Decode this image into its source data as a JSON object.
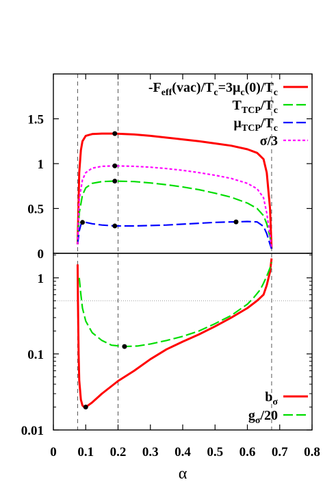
{
  "chart_data": [
    {
      "type": "line",
      "panel": "top",
      "xlim": [
        0,
        0.8
      ],
      "ylim": [
        0,
        2.0
      ],
      "yscale": "linear",
      "y_ticks": [
        "0",
        "0.5",
        "1",
        "1.5"
      ],
      "grid": false,
      "legend_placement": "top-right",
      "reference_lines_x": [
        0.075,
        0.2,
        0.675
      ],
      "series": [
        {
          "name": "-F_eff(vac)/T_c=3μ_c(0)/T_c",
          "legend": {
            "main": "-F",
            "s1": "eff",
            "m2": "(vac)/T",
            "s2": "c",
            "m3": "=3μ",
            "s3": "c",
            "m4": "(0)/T",
            "s4": "c"
          },
          "color": "#ff0000",
          "style": "solid",
          "x": [
            0.075,
            0.08,
            0.085,
            0.09,
            0.1,
            0.12,
            0.15,
            0.19,
            0.25,
            0.3,
            0.35,
            0.4,
            0.45,
            0.5,
            0.55,
            0.6,
            0.63,
            0.65,
            0.66,
            0.67,
            0.675
          ],
          "y": [
            0.1,
            0.9,
            1.15,
            1.25,
            1.31,
            1.33,
            1.335,
            1.335,
            1.325,
            1.31,
            1.29,
            1.27,
            1.25,
            1.225,
            1.2,
            1.16,
            1.12,
            1.05,
            0.9,
            0.5,
            0.05
          ]
        },
        {
          "name": "T_TCP/T_c",
          "legend": {
            "main": "T",
            "s1": "TCP",
            "m2": "/T",
            "s2": "c"
          },
          "color": "#00dd00",
          "style": "dashed",
          "x": [
            0.075,
            0.08,
            0.09,
            0.1,
            0.12,
            0.15,
            0.19,
            0.25,
            0.3,
            0.35,
            0.4,
            0.45,
            0.5,
            0.55,
            0.6,
            0.63,
            0.65,
            0.66,
            0.67,
            0.675
          ],
          "y": [
            0.1,
            0.45,
            0.65,
            0.73,
            0.78,
            0.8,
            0.805,
            0.8,
            0.785,
            0.765,
            0.74,
            0.71,
            0.67,
            0.625,
            0.56,
            0.5,
            0.42,
            0.33,
            0.18,
            0.05
          ]
        },
        {
          "name": "μ_TCP/T_c",
          "legend": {
            "main": "μ",
            "s1": "TCP",
            "m2": "/T",
            "s2": "c"
          },
          "color": "#0000ff",
          "style": "dashed",
          "x": [
            0.075,
            0.08,
            0.085,
            0.09,
            0.1,
            0.12,
            0.15,
            0.19,
            0.25,
            0.3,
            0.35,
            0.4,
            0.45,
            0.5,
            0.55,
            0.565,
            0.6,
            0.63,
            0.65,
            0.66,
            0.67,
            0.675
          ],
          "y": [
            0.1,
            0.25,
            0.32,
            0.345,
            0.345,
            0.33,
            0.315,
            0.305,
            0.305,
            0.31,
            0.315,
            0.325,
            0.335,
            0.345,
            0.35,
            0.35,
            0.355,
            0.35,
            0.3,
            0.22,
            0.1,
            0.05
          ]
        },
        {
          "name": "σ/3",
          "legend": {
            "main": "σ/3"
          },
          "color": "#ff00ff",
          "style": "dotted",
          "x": [
            0.075,
            0.08,
            0.09,
            0.1,
            0.12,
            0.15,
            0.19,
            0.25,
            0.3,
            0.35,
            0.4,
            0.45,
            0.5,
            0.55,
            0.6,
            0.63,
            0.65,
            0.66,
            0.67,
            0.675
          ],
          "y": [
            0.1,
            0.6,
            0.82,
            0.9,
            0.95,
            0.97,
            0.975,
            0.97,
            0.96,
            0.945,
            0.925,
            0.9,
            0.87,
            0.835,
            0.78,
            0.72,
            0.62,
            0.45,
            0.2,
            0.05
          ]
        }
      ],
      "markers": [
        {
          "x": 0.19,
          "y": 1.335
        },
        {
          "x": 0.19,
          "y": 0.975
        },
        {
          "x": 0.19,
          "y": 0.805
        },
        {
          "x": 0.09,
          "y": 0.345
        },
        {
          "x": 0.19,
          "y": 0.305
        },
        {
          "x": 0.565,
          "y": 0.35
        }
      ]
    },
    {
      "type": "line",
      "panel": "bottom",
      "xlim": [
        0,
        0.8
      ],
      "ylim": [
        0.01,
        2.1
      ],
      "yscale": "log",
      "y_ticks": [
        "0.01",
        "0.1",
        "1"
      ],
      "x_ticks": [
        "0",
        "0.1",
        "0.2",
        "0.3",
        "0.4",
        "0.5",
        "0.6",
        "0.7",
        "0.8"
      ],
      "xlabel": "α",
      "grid": false,
      "legend_placement": "bottom-right",
      "reference_lines_x": [
        0.075,
        0.2,
        0.675
      ],
      "reference_lines_y": [
        0.5
      ],
      "series": [
        {
          "name": "b_σ",
          "legend": {
            "main": "b",
            "s1": "σ"
          },
          "color": "#ff0000",
          "style": "solid",
          "x": [
            0.675,
            0.67,
            0.66,
            0.65,
            0.63,
            0.6,
            0.55,
            0.5,
            0.45,
            0.4,
            0.35,
            0.3,
            0.25,
            0.2,
            0.15,
            0.12,
            0.1,
            0.095,
            0.09,
            0.085,
            0.08,
            0.078,
            0.076,
            0.075
          ],
          "y": [
            1.8,
            1.2,
            0.8,
            0.6,
            0.5,
            0.4,
            0.3,
            0.23,
            0.18,
            0.145,
            0.115,
            0.085,
            0.06,
            0.044,
            0.03,
            0.023,
            0.02,
            0.02,
            0.021,
            0.025,
            0.045,
            0.1,
            0.5,
            1.5
          ]
        },
        {
          "name": "g_σ/20",
          "legend": {
            "main": "g",
            "s1": "σ",
            "m2": "/20"
          },
          "color": "#00dd00",
          "style": "dashed",
          "x": [
            0.08,
            0.085,
            0.09,
            0.1,
            0.12,
            0.15,
            0.18,
            0.22,
            0.26,
            0.3,
            0.35,
            0.4,
            0.45,
            0.5,
            0.55,
            0.6,
            0.62,
            0.64,
            0.65,
            0.66,
            0.67,
            0.675
          ],
          "y": [
            1.0,
            0.6,
            0.4,
            0.27,
            0.19,
            0.15,
            0.13,
            0.125,
            0.127,
            0.135,
            0.15,
            0.17,
            0.2,
            0.25,
            0.32,
            0.45,
            0.55,
            0.7,
            0.85,
            1.05,
            1.35,
            1.6
          ]
        }
      ],
      "markers": [
        {
          "x": 0.1,
          "y": 0.02
        },
        {
          "x": 0.22,
          "y": 0.125
        }
      ]
    }
  ]
}
